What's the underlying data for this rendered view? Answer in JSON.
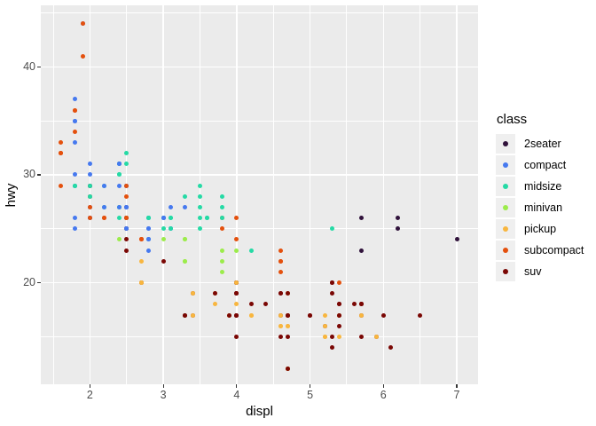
{
  "chart_data": {
    "type": "scatter",
    "title": "",
    "xlabel": "displ",
    "ylabel": "hwy",
    "xlim": [
      1.33,
      7.29
    ],
    "ylim": [
      10.6,
      45.7
    ],
    "grid": true,
    "legend_position": "right",
    "legend_title": "class",
    "x_ticks_major": [
      2,
      3,
      4,
      5,
      6,
      7
    ],
    "x_ticks_minor": [
      1.5,
      2.5,
      3.5,
      4.5,
      5.5,
      6.5
    ],
    "y_ticks_major": [
      20,
      30,
      40
    ],
    "y_ticks_minor": [
      15,
      25,
      35,
      45
    ],
    "classes": [
      {
        "label": "2seater",
        "color": "#30123B"
      },
      {
        "label": "compact",
        "color": "#4679EF"
      },
      {
        "label": "midsize",
        "color": "#25DAA5"
      },
      {
        "label": "minivan",
        "color": "#9CEC4B"
      },
      {
        "label": "pickup",
        "color": "#F8B63F"
      },
      {
        "label": "subcompact",
        "color": "#E4500D"
      },
      {
        "label": "suv",
        "color": "#7A0704"
      }
    ],
    "points": [
      [
        1.8,
        29,
        "compact"
      ],
      [
        1.8,
        29,
        "compact"
      ],
      [
        2,
        31,
        "compact"
      ],
      [
        2,
        30,
        "compact"
      ],
      [
        2.8,
        26,
        "compact"
      ],
      [
        2.8,
        26,
        "compact"
      ],
      [
        3.1,
        27,
        "compact"
      ],
      [
        1.8,
        26,
        "compact"
      ],
      [
        1.8,
        25,
        "compact"
      ],
      [
        2,
        28,
        "compact"
      ],
      [
        2,
        27,
        "compact"
      ],
      [
        2.8,
        25,
        "compact"
      ],
      [
        2.8,
        25,
        "compact"
      ],
      [
        3.1,
        25,
        "compact"
      ],
      [
        3.1,
        25,
        "compact"
      ],
      [
        2.8,
        24,
        "midsize"
      ],
      [
        3.1,
        25,
        "midsize"
      ],
      [
        4.2,
        23,
        "midsize"
      ],
      [
        5.3,
        20,
        "suv"
      ],
      [
        5.3,
        15,
        "suv"
      ],
      [
        5.3,
        20,
        "suv"
      ],
      [
        5.7,
        17,
        "suv"
      ],
      [
        6,
        17,
        "suv"
      ],
      [
        5.7,
        26,
        "2seater"
      ],
      [
        5.7,
        23,
        "2seater"
      ],
      [
        6.2,
        26,
        "2seater"
      ],
      [
        6.2,
        25,
        "2seater"
      ],
      [
        7,
        24,
        "2seater"
      ],
      [
        5.3,
        14,
        "suv"
      ],
      [
        5.3,
        19,
        "suv"
      ],
      [
        5.7,
        15,
        "suv"
      ],
      [
        6.5,
        17,
        "suv"
      ],
      [
        2.4,
        27,
        "midsize"
      ],
      [
        2.4,
        30,
        "midsize"
      ],
      [
        3.1,
        26,
        "midsize"
      ],
      [
        3.5,
        29,
        "midsize"
      ],
      [
        3.6,
        26,
        "midsize"
      ],
      [
        2.4,
        24,
        "minivan"
      ],
      [
        3,
        24,
        "minivan"
      ],
      [
        3.3,
        22,
        "minivan"
      ],
      [
        3.3,
        22,
        "minivan"
      ],
      [
        3.3,
        24,
        "minivan"
      ],
      [
        3.3,
        24,
        "minivan"
      ],
      [
        3.3,
        17,
        "minivan"
      ],
      [
        3.8,
        22,
        "minivan"
      ],
      [
        3.8,
        21,
        "minivan"
      ],
      [
        3.8,
        23,
        "minivan"
      ],
      [
        4,
        23,
        "minivan"
      ],
      [
        3.7,
        19,
        "pickup"
      ],
      [
        3.7,
        18,
        "pickup"
      ],
      [
        3.9,
        17,
        "pickup"
      ],
      [
        3.9,
        17,
        "pickup"
      ],
      [
        4.7,
        19,
        "pickup"
      ],
      [
        4.7,
        19,
        "pickup"
      ],
      [
        4.7,
        12,
        "pickup"
      ],
      [
        5.2,
        17,
        "pickup"
      ],
      [
        5.2,
        15,
        "pickup"
      ],
      [
        3.9,
        17,
        "suv"
      ],
      [
        4.7,
        17,
        "suv"
      ],
      [
        4.7,
        12,
        "suv"
      ],
      [
        4.7,
        17,
        "suv"
      ],
      [
        5.2,
        16,
        "suv"
      ],
      [
        5.7,
        18,
        "suv"
      ],
      [
        5.9,
        15,
        "suv"
      ],
      [
        4.7,
        16,
        "pickup"
      ],
      [
        4.7,
        12,
        "pickup"
      ],
      [
        4.7,
        17,
        "pickup"
      ],
      [
        4.7,
        17,
        "pickup"
      ],
      [
        4.7,
        16,
        "pickup"
      ],
      [
        4.7,
        12,
        "pickup"
      ],
      [
        5.2,
        15,
        "pickup"
      ],
      [
        5.2,
        16,
        "pickup"
      ],
      [
        5.7,
        17,
        "pickup"
      ],
      [
        5.9,
        15,
        "pickup"
      ],
      [
        4.6,
        17,
        "suv"
      ],
      [
        5.4,
        17,
        "suv"
      ],
      [
        5.4,
        18,
        "suv"
      ],
      [
        4,
        17,
        "suv"
      ],
      [
        4,
        19,
        "suv"
      ],
      [
        4,
        17,
        "suv"
      ],
      [
        4,
        19,
        "suv"
      ],
      [
        4.6,
        19,
        "suv"
      ],
      [
        5,
        17,
        "suv"
      ],
      [
        4.2,
        17,
        "pickup"
      ],
      [
        4.2,
        17,
        "pickup"
      ],
      [
        4.6,
        16,
        "pickup"
      ],
      [
        4.6,
        16,
        "pickup"
      ],
      [
        4.6,
        17,
        "pickup"
      ],
      [
        5.4,
        15,
        "pickup"
      ],
      [
        5.4,
        17,
        "pickup"
      ],
      [
        3.8,
        26,
        "subcompact"
      ],
      [
        3.8,
        25,
        "subcompact"
      ],
      [
        4,
        26,
        "subcompact"
      ],
      [
        4,
        24,
        "subcompact"
      ],
      [
        4.6,
        21,
        "subcompact"
      ],
      [
        4.6,
        22,
        "subcompact"
      ],
      [
        4.6,
        23,
        "subcompact"
      ],
      [
        4.6,
        22,
        "subcompact"
      ],
      [
        5.4,
        20,
        "subcompact"
      ],
      [
        1.6,
        33,
        "subcompact"
      ],
      [
        1.6,
        32,
        "subcompact"
      ],
      [
        1.6,
        32,
        "subcompact"
      ],
      [
        1.6,
        29,
        "subcompact"
      ],
      [
        1.6,
        32,
        "subcompact"
      ],
      [
        1.8,
        34,
        "subcompact"
      ],
      [
        1.8,
        36,
        "subcompact"
      ],
      [
        1.8,
        36,
        "subcompact"
      ],
      [
        2,
        29,
        "subcompact"
      ],
      [
        2.4,
        26,
        "midsize"
      ],
      [
        2.4,
        27,
        "midsize"
      ],
      [
        2.4,
        30,
        "midsize"
      ],
      [
        2.4,
        31,
        "midsize"
      ],
      [
        2.5,
        26,
        "midsize"
      ],
      [
        2.5,
        26,
        "midsize"
      ],
      [
        3.3,
        28,
        "midsize"
      ],
      [
        2,
        26,
        "subcompact"
      ],
      [
        2,
        29,
        "subcompact"
      ],
      [
        2,
        28,
        "subcompact"
      ],
      [
        2,
        27,
        "subcompact"
      ],
      [
        2.7,
        24,
        "subcompact"
      ],
      [
        2.7,
        24,
        "subcompact"
      ],
      [
        2.7,
        24,
        "subcompact"
      ],
      [
        3,
        22,
        "suv"
      ],
      [
        3.7,
        19,
        "suv"
      ],
      [
        4,
        20,
        "suv"
      ],
      [
        4.7,
        17,
        "suv"
      ],
      [
        4.7,
        12,
        "suv"
      ],
      [
        4.7,
        19,
        "suv"
      ],
      [
        5.7,
        18,
        "suv"
      ],
      [
        6.1,
        14,
        "suv"
      ],
      [
        4,
        15,
        "suv"
      ],
      [
        4.2,
        18,
        "suv"
      ],
      [
        4.4,
        18,
        "suv"
      ],
      [
        4.6,
        15,
        "suv"
      ],
      [
        5.4,
        17,
        "suv"
      ],
      [
        5.4,
        16,
        "suv"
      ],
      [
        5.4,
        18,
        "suv"
      ],
      [
        4,
        17,
        "suv"
      ],
      [
        4,
        19,
        "suv"
      ],
      [
        4.6,
        19,
        "suv"
      ],
      [
        5,
        17,
        "suv"
      ],
      [
        2.4,
        29,
        "compact"
      ],
      [
        2.4,
        27,
        "compact"
      ],
      [
        2.5,
        31,
        "midsize"
      ],
      [
        2.5,
        32,
        "midsize"
      ],
      [
        3.5,
        27,
        "midsize"
      ],
      [
        3.5,
        26,
        "midsize"
      ],
      [
        3,
        26,
        "midsize"
      ],
      [
        3,
        25,
        "midsize"
      ],
      [
        3.5,
        25,
        "midsize"
      ],
      [
        3.3,
        17,
        "suv"
      ],
      [
        3.3,
        17,
        "suv"
      ],
      [
        4,
        20,
        "suv"
      ],
      [
        5.6,
        18,
        "suv"
      ],
      [
        3.1,
        26,
        "midsize"
      ],
      [
        3.8,
        26,
        "midsize"
      ],
      [
        3.8,
        27,
        "midsize"
      ],
      [
        3.8,
        28,
        "midsize"
      ],
      [
        5.3,
        25,
        "midsize"
      ],
      [
        2.5,
        25,
        "suv"
      ],
      [
        2.5,
        24,
        "suv"
      ],
      [
        2.5,
        27,
        "suv"
      ],
      [
        2.5,
        25,
        "suv"
      ],
      [
        2.5,
        26,
        "suv"
      ],
      [
        2.5,
        23,
        "suv"
      ],
      [
        2.2,
        26,
        "subcompact"
      ],
      [
        2.2,
        26,
        "subcompact"
      ],
      [
        2.5,
        26,
        "subcompact"
      ],
      [
        2.5,
        26,
        "subcompact"
      ],
      [
        2.5,
        25,
        "compact"
      ],
      [
        2.5,
        27,
        "compact"
      ],
      [
        2.5,
        25,
        "compact"
      ],
      [
        2.5,
        27,
        "compact"
      ],
      [
        2.7,
        20,
        "suv"
      ],
      [
        2.7,
        20,
        "suv"
      ],
      [
        3.4,
        19,
        "suv"
      ],
      [
        3.4,
        17,
        "suv"
      ],
      [
        4,
        20,
        "suv"
      ],
      [
        4.7,
        17,
        "suv"
      ],
      [
        2.2,
        29,
        "midsize"
      ],
      [
        2.2,
        27,
        "midsize"
      ],
      [
        2.4,
        31,
        "midsize"
      ],
      [
        2.4,
        31,
        "midsize"
      ],
      [
        3,
        26,
        "midsize"
      ],
      [
        3,
        26,
        "midsize"
      ],
      [
        3.5,
        28,
        "midsize"
      ],
      [
        2.2,
        29,
        "compact"
      ],
      [
        2.2,
        27,
        "compact"
      ],
      [
        2.4,
        31,
        "compact"
      ],
      [
        2.4,
        31,
        "compact"
      ],
      [
        3,
        26,
        "compact"
      ],
      [
        3,
        26,
        "compact"
      ],
      [
        3.3,
        27,
        "compact"
      ],
      [
        1.8,
        30,
        "compact"
      ],
      [
        1.8,
        33,
        "compact"
      ],
      [
        1.8,
        35,
        "compact"
      ],
      [
        1.8,
        37,
        "compact"
      ],
      [
        1.8,
        35,
        "compact"
      ],
      [
        4.7,
        15,
        "suv"
      ],
      [
        5.7,
        18,
        "suv"
      ],
      [
        2.7,
        20,
        "pickup"
      ],
      [
        2.7,
        20,
        "pickup"
      ],
      [
        2.7,
        22,
        "pickup"
      ],
      [
        3.4,
        17,
        "pickup"
      ],
      [
        3.4,
        19,
        "pickup"
      ],
      [
        4,
        18,
        "pickup"
      ],
      [
        4,
        20,
        "pickup"
      ],
      [
        2,
        29,
        "compact"
      ],
      [
        2,
        26,
        "compact"
      ],
      [
        2,
        29,
        "compact"
      ],
      [
        2,
        29,
        "compact"
      ],
      [
        2.8,
        24,
        "compact"
      ],
      [
        1.9,
        44,
        "compact"
      ],
      [
        2,
        29,
        "compact"
      ],
      [
        2,
        26,
        "compact"
      ],
      [
        2,
        29,
        "compact"
      ],
      [
        2,
        29,
        "compact"
      ],
      [
        2.5,
        29,
        "compact"
      ],
      [
        2.5,
        29,
        "compact"
      ],
      [
        2.8,
        23,
        "compact"
      ],
      [
        2.8,
        24,
        "compact"
      ],
      [
        1.9,
        44,
        "subcompact"
      ],
      [
        1.9,
        41,
        "subcompact"
      ],
      [
        2,
        29,
        "subcompact"
      ],
      [
        2,
        26,
        "subcompact"
      ],
      [
        2.5,
        28,
        "subcompact"
      ],
      [
        2.5,
        29,
        "subcompact"
      ],
      [
        1.8,
        29,
        "midsize"
      ],
      [
        1.8,
        29,
        "midsize"
      ],
      [
        2,
        28,
        "midsize"
      ],
      [
        2,
        29,
        "midsize"
      ],
      [
        2.8,
        26,
        "midsize"
      ],
      [
        2.8,
        26,
        "midsize"
      ],
      [
        3.6,
        26,
        "midsize"
      ]
    ],
    "colors": {
      "panel_background": "#EBEBEB",
      "grid": "#FFFFFF",
      "tick_text": "#4D4D4D",
      "tick_mark": "#333333",
      "legend_key_background": "#EFEFEF"
    }
  }
}
